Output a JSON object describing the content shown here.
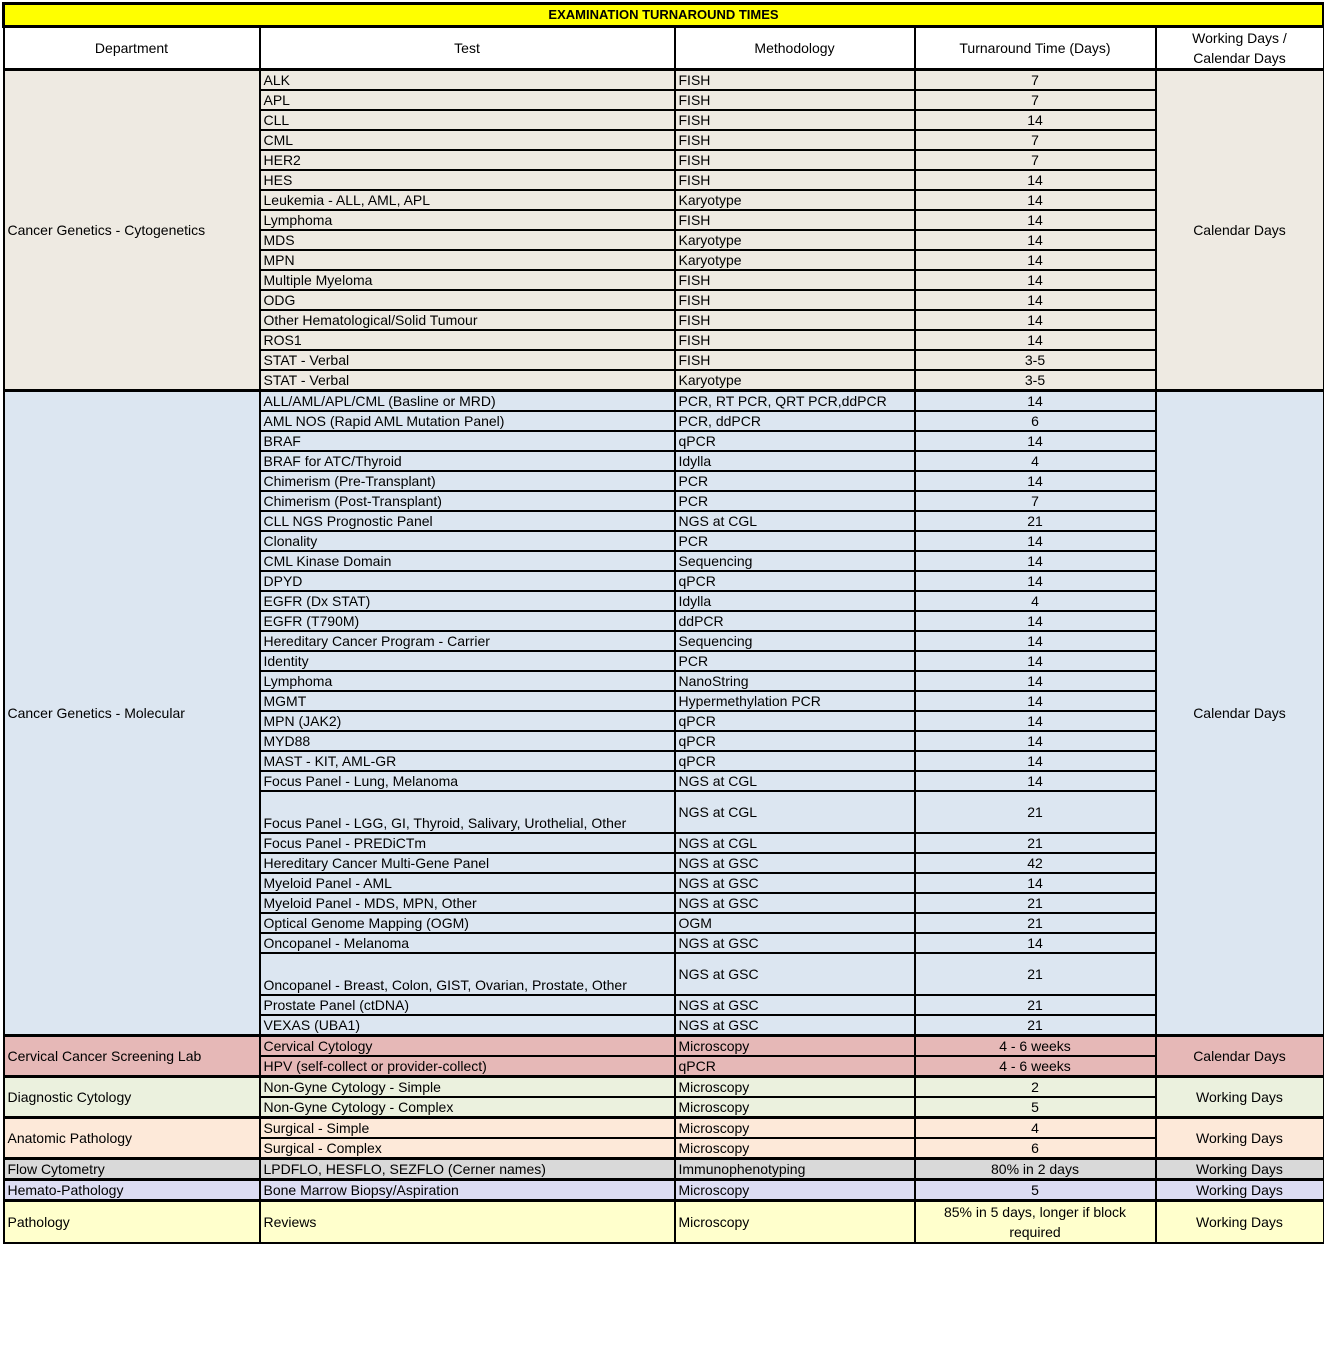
{
  "title": "EXAMINATION TURNAROUND TIMES",
  "headers": [
    "Department",
    "Test",
    "Methodology",
    "Turnaround Time (Days)",
    "Working Days / Calendar Days"
  ],
  "groups": [
    {
      "department": "Cancer Genetics - Cytogenetics",
      "day_type": "Calendar Days",
      "color": "#EEEAE2",
      "rows": [
        {
          "test": "ALK",
          "method": "FISH",
          "tat": "7"
        },
        {
          "test": "APL",
          "method": "FISH",
          "tat": "7"
        },
        {
          "test": "CLL",
          "method": "FISH",
          "tat": "14"
        },
        {
          "test": "CML",
          "method": "FISH",
          "tat": "7"
        },
        {
          "test": "HER2",
          "method": "FISH",
          "tat": "7"
        },
        {
          "test": "HES",
          "method": "FISH",
          "tat": "14"
        },
        {
          "test": "Leukemia - ALL, AML, APL",
          "method": "Karyotype",
          "tat": "14"
        },
        {
          "test": "Lymphoma",
          "method": "FISH",
          "tat": "14"
        },
        {
          "test": "MDS",
          "method": "Karyotype",
          "tat": "14"
        },
        {
          "test": "MPN",
          "method": "Karyotype",
          "tat": "14"
        },
        {
          "test": "Multiple Myeloma",
          "method": "FISH",
          "tat": "14"
        },
        {
          "test": "ODG",
          "method": "FISH",
          "tat": "14"
        },
        {
          "test": "Other Hematological/Solid Tumour",
          "method": "FISH",
          "tat": "14"
        },
        {
          "test": "ROS1",
          "method": "FISH",
          "tat": "14"
        },
        {
          "test": "STAT - Verbal",
          "method": "FISH",
          "tat": "3-5"
        },
        {
          "test": "STAT - Verbal",
          "method": "Karyotype",
          "tat": "3-5"
        }
      ]
    },
    {
      "department": "Cancer Genetics - Molecular",
      "day_type": "Calendar Days",
      "color": "#DCE6F1",
      "rows": [
        {
          "test": "ALL/AML/APL/CML (Basline or MRD)",
          "method": "PCR, RT PCR, QRT PCR,ddPCR",
          "tat": "14"
        },
        {
          "test": "AML NOS (Rapid AML Mutation Panel)",
          "method": "PCR, ddPCR",
          "tat": "6"
        },
        {
          "test": "BRAF",
          "method": "qPCR",
          "tat": "14"
        },
        {
          "test": "BRAF for ATC/Thyroid",
          "method": "Idylla",
          "tat": "4"
        },
        {
          "test": "Chimerism (Pre-Transplant)",
          "method": "PCR",
          "tat": "14"
        },
        {
          "test": "Chimerism (Post-Transplant)",
          "method": "PCR",
          "tat": "7"
        },
        {
          "test": "CLL NGS Prognostic Panel",
          "method": "NGS at CGL",
          "tat": "21"
        },
        {
          "test": "Clonality",
          "method": "PCR",
          "tat": "14"
        },
        {
          "test": "CML Kinase Domain",
          "method": "Sequencing",
          "tat": "14"
        },
        {
          "test": "DPYD",
          "method": "qPCR",
          "tat": "14"
        },
        {
          "test": "EGFR (Dx STAT)",
          "method": "Idylla",
          "tat": "4"
        },
        {
          "test": "EGFR (T790M)",
          "method": "ddPCR",
          "tat": "14"
        },
        {
          "test": "Hereditary Cancer Program - Carrier",
          "method": "Sequencing",
          "tat": "14"
        },
        {
          "test": "Identity",
          "method": "PCR",
          "tat": "14"
        },
        {
          "test": "Lymphoma",
          "method": "NanoString",
          "tat": "14"
        },
        {
          "test": "MGMT",
          "method": "Hypermethylation PCR",
          "tat": "14"
        },
        {
          "test": "MPN (JAK2)",
          "method": "qPCR",
          "tat": "14"
        },
        {
          "test": "MYD88",
          "method": "qPCR",
          "tat": "14"
        },
        {
          "test": "MAST - KIT, AML-GR",
          "method": "qPCR",
          "tat": "14"
        },
        {
          "test": "Focus Panel - Lung, Melanoma",
          "method": "NGS at CGL",
          "tat": "14"
        },
        {
          "test": "Focus Panel - LGG, GI, Thyroid, Salivary, Urothelial, Other",
          "method": "NGS at CGL",
          "tat": "21",
          "tall": true
        },
        {
          "test": "Focus Panel - PREDiCTm",
          "method": "NGS at CGL",
          "tat": "21"
        },
        {
          "test": "Hereditary Cancer Multi-Gene Panel",
          "method": "NGS at GSC",
          "tat": "42"
        },
        {
          "test": "Myeloid Panel - AML",
          "method": "NGS at GSC",
          "tat": "14"
        },
        {
          "test": "Myeloid Panel - MDS, MPN, Other",
          "method": "NGS at GSC",
          "tat": "21"
        },
        {
          "test": "Optical Genome Mapping (OGM)",
          "method": "OGM",
          "tat": "21"
        },
        {
          "test": "Oncopanel - Melanoma",
          "method": "NGS at GSC",
          "tat": "14"
        },
        {
          "test": "Oncopanel - Breast, Colon, GIST, Ovarian, Prostate, Other",
          "method": "NGS at GSC",
          "tat": "21",
          "tall": true
        },
        {
          "test": "Prostate Panel (ctDNA)",
          "method": "NGS at GSC",
          "tat": "21"
        },
        {
          "test": "VEXAS (UBA1)",
          "method": "NGS at GSC",
          "tat": "21"
        }
      ]
    },
    {
      "department": "Cervical Cancer Screening Lab",
      "day_type": "Calendar Days",
      "color": "#E6B8B7",
      "rows": [
        {
          "test": "Cervical Cytology",
          "method": "Microscopy",
          "tat": "4 - 6 weeks"
        },
        {
          "test": "HPV (self-collect or provider-collect)",
          "method": "qPCR",
          "tat": "4 - 6 weeks"
        }
      ]
    },
    {
      "department": "Diagnostic Cytology",
      "day_type": "Working Days",
      "color": "#EBF1DE",
      "rows": [
        {
          "test": "Non-Gyne Cytology - Simple",
          "method": "Microscopy",
          "tat": "2"
        },
        {
          "test": "Non-Gyne Cytology - Complex",
          "method": "Microscopy",
          "tat": "5"
        }
      ]
    },
    {
      "department": "Anatomic Pathology",
      "day_type": "Working Days",
      "color": "#FDE9D9",
      "rows": [
        {
          "test": "Surgical - Simple",
          "method": "Microscopy",
          "tat": "4"
        },
        {
          "test": "Surgical - Complex",
          "method": "Microscopy",
          "tat": "6"
        }
      ]
    },
    {
      "department": "Flow Cytometry",
      "day_type": "Working Days",
      "color": "#D9D9D9",
      "rows": [
        {
          "test": "LPDFLO, HESFLO, SEZFLO (Cerner names)",
          "method": "Immunophenotyping",
          "tat": "80% in 2 days"
        }
      ]
    },
    {
      "department": "Hemato-Pathology",
      "day_type": "Working Days",
      "color": "#DDDDF3",
      "rows": [
        {
          "test": "Bone Marrow Biopsy/Aspiration",
          "method": "Microscopy",
          "tat": "5"
        }
      ]
    },
    {
      "department": "Pathology",
      "day_type": "Working Days",
      "color": "#FFFFCC",
      "rows": [
        {
          "test": "Reviews",
          "method": "Microscopy",
          "tat": "85% in 5 days, longer if block required",
          "tall": true,
          "center": true
        }
      ]
    }
  ]
}
